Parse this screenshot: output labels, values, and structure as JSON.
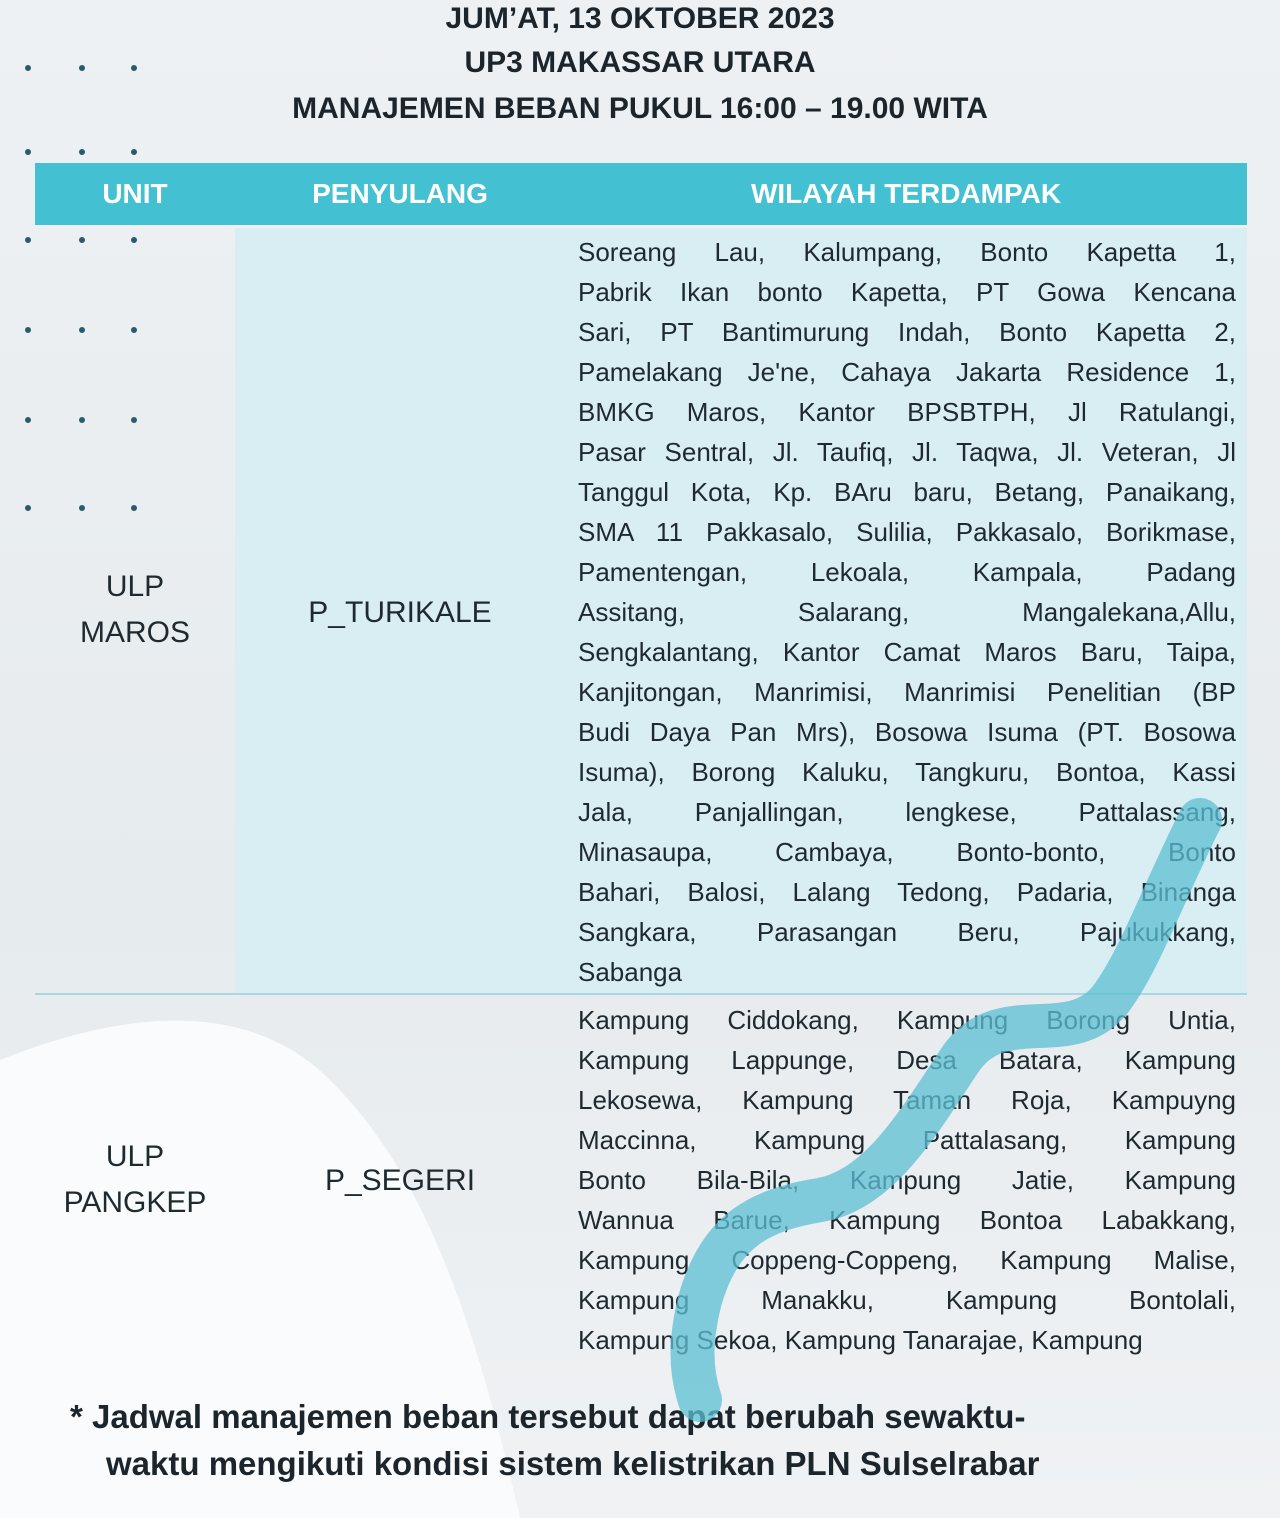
{
  "header": {
    "date": "JUM’AT, 13 OKTOBER 2023",
    "unit_area": "UP3 MAKASSAR UTARA",
    "subtitle": "MANAJEMEN BEBAN PUKUL 16:00 – 19.00 WITA"
  },
  "table": {
    "columns": [
      "UNIT",
      "PENYULANG",
      "WILAYAH TERDAMPAK"
    ],
    "rows": [
      {
        "unit": [
          "ULP",
          "MAROS"
        ],
        "feeder": "P_TURIKALE",
        "areas": [
          "Soreang Lau, Kalumpang, Bonto Kapetta 1,",
          "Pabrik Ikan bonto Kapetta, PT Gowa Kencana",
          "Sari, PT Bantimurung Indah, Bonto Kapetta 2,",
          "Pamelakang Je'ne, Cahaya Jakarta Residence 1,",
          "BMKG Maros, Kantor BPSBTPH, Jl Ratulangi,",
          "Pasar Sentral, Jl. Taufiq, Jl. Taqwa, Jl. Veteran, Jl",
          "Tanggul Kota, Kp. BAru baru, Betang, Panaikang,",
          "SMA 11 Pakkasalo, Sulilia, Pakkasalo, Borikmase,",
          "Pamentengan, Lekoala, Kampala, Padang",
          "Assitang, Salarang, Mangalekana,Allu,",
          "Sengkalantang, Kantor Camat Maros Baru, Taipa,",
          "Kanjitongan, Manrimisi, Manrimisi Penelitian (BP",
          "Budi Daya Pan Mrs), Bosowa Isuma (PT. Bosowa",
          "Isuma), Borong Kaluku, Tangkuru, Bontoa, Kassi",
          "Jala, Panjallingan, lengkese, Pattalassang,",
          "Minasaupa, Cambaya, Bonto-bonto, Bonto",
          "Bahari, Balosi, Lalang Tedong, Padaria, Binanga",
          "Sangkara, Parasangan Beru, Pajukukkang,",
          "Sabanga"
        ]
      },
      {
        "unit": [
          "ULP",
          "PANGKEP"
        ],
        "feeder": "P_SEGERI",
        "areas": [
          "Kampung Ciddokang, Kampung Borong Untia,",
          "Kampung Lappunge, Desa Batara, Kampung",
          "Lekosewa, Kampung Taman Roja, Kampuyng",
          "Maccinna, Kampung Pattalasang, Kampung",
          "Bonto Bila-Bila, Kampung Jatie, Kampung",
          "Wannua Barue, Kampung Bontoa Labakkang,",
          "Kampung Coppeng-Coppeng, Kampung Malise,",
          "Kampung Manakku, Kampung Bontolali,",
          "Kampung Sekoa, Kampung Tanarajae, Kampung"
        ]
      }
    ]
  },
  "footer": {
    "note_line1": "* Jadwal manajemen beban tersebut dapat berubah sewaktu-",
    "note_line2": "waktu mengikuti kondisi sistem kelistrikan PLN Sulselrabar"
  },
  "colors": {
    "header_bg": "#43c0d1",
    "row_bg": "#d9eef3",
    "wave": "#5bbfd3"
  }
}
